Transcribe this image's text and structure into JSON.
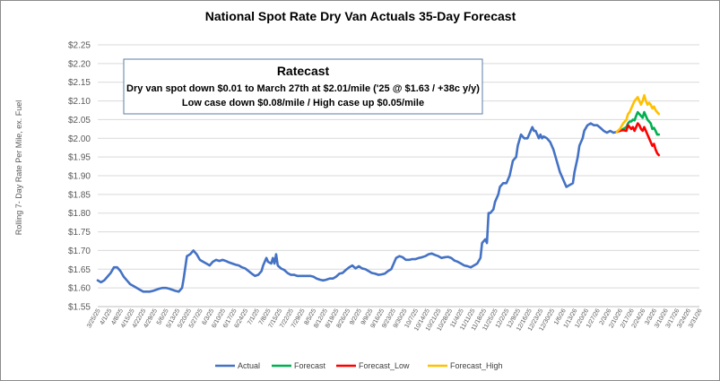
{
  "chart_data": {
    "type": "line",
    "title": "National Spot Rate Dry Van Actuals 35-Day Forecast",
    "ylabel": "Rolling 7- Day Rate Per Mile, ex. Fuel",
    "xlabel": "",
    "ylim": [
      1.55,
      2.25
    ],
    "yticks": [
      "$1.55",
      "$1.60",
      "$1.65",
      "$1.70",
      "$1.75",
      "$1.80",
      "$1.85",
      "$1.90",
      "$1.95",
      "$2.00",
      "$2.05",
      "$2.10",
      "$2.15",
      "$2.20",
      "$2.25"
    ],
    "xticks": [
      "3/25/25",
      "4/1/25",
      "4/8/25",
      "4/15/25",
      "4/22/25",
      "4/29/25",
      "5/6/25",
      "5/13/25",
      "5/20/25",
      "5/27/25",
      "6/3/25",
      "6/10/25",
      "6/17/25",
      "6/24/25",
      "7/1/25",
      "7/8/25",
      "7/15/25",
      "7/22/25",
      "7/29/25",
      "8/5/25",
      "8/12/25",
      "8/19/25",
      "8/26/25",
      "9/2/25",
      "9/9/25",
      "9/16/25",
      "9/23/25",
      "9/30/25",
      "10/7/25",
      "10/14/25",
      "10/21/25",
      "10/28/25",
      "11/4/25",
      "11/11/25",
      "11/18/25",
      "11/25/25",
      "12/2/25",
      "12/9/25",
      "12/16/25",
      "12/23/25",
      "12/30/25",
      "1/6/26",
      "1/13/26",
      "1/20/26",
      "1/27/26",
      "2/3/26",
      "2/10/26",
      "2/17/26",
      "2/24/26",
      "3/3/26",
      "3/10/26",
      "3/17/26",
      "3/24/26",
      "3/31/26"
    ],
    "annotation": {
      "title": "Ratecast",
      "lines": [
        "Dry van spot down $0.01 to March 27th at $2.01/mile ('25 @ $1.63 / +38c y/y)",
        "Low case down $0.08/mile / High case up $0.05/mile"
      ]
    },
    "legend_position": "bottom",
    "series": [
      {
        "name": "Actual",
        "color": "#4472c4",
        "points": [
          [
            0,
            1.62
          ],
          [
            2,
            1.615
          ],
          [
            4,
            1.62
          ],
          [
            6,
            1.63
          ],
          [
            8,
            1.64
          ],
          [
            10,
            1.655
          ],
          [
            12,
            1.655
          ],
          [
            14,
            1.645
          ],
          [
            16,
            1.63
          ],
          [
            18,
            1.62
          ],
          [
            20,
            1.61
          ],
          [
            22,
            1.605
          ],
          [
            24,
            1.6
          ],
          [
            26,
            1.595
          ],
          [
            28,
            1.59
          ],
          [
            30,
            1.59
          ],
          [
            32,
            1.59
          ],
          [
            34,
            1.592
          ],
          [
            36,
            1.595
          ],
          [
            38,
            1.598
          ],
          [
            40,
            1.6
          ],
          [
            42,
            1.6
          ],
          [
            44,
            1.598
          ],
          [
            46,
            1.595
          ],
          [
            48,
            1.592
          ],
          [
            50,
            1.59
          ],
          [
            52,
            1.6
          ],
          [
            53,
            1.625
          ],
          [
            55,
            1.685
          ],
          [
            57,
            1.69
          ],
          [
            59,
            1.7
          ],
          [
            61,
            1.69
          ],
          [
            63,
            1.675
          ],
          [
            65,
            1.67
          ],
          [
            67,
            1.665
          ],
          [
            69,
            1.66
          ],
          [
            71,
            1.67
          ],
          [
            73,
            1.675
          ],
          [
            75,
            1.672
          ],
          [
            77,
            1.675
          ],
          [
            79,
            1.672
          ],
          [
            81,
            1.668
          ],
          [
            83,
            1.665
          ],
          [
            85,
            1.662
          ],
          [
            87,
            1.66
          ],
          [
            89,
            1.655
          ],
          [
            91,
            1.652
          ],
          [
            93,
            1.645
          ],
          [
            95,
            1.638
          ],
          [
            97,
            1.632
          ],
          [
            99,
            1.635
          ],
          [
            101,
            1.645
          ],
          [
            102,
            1.66
          ],
          [
            104,
            1.68
          ],
          [
            105,
            1.67
          ],
          [
            107,
            1.665
          ],
          [
            108,
            1.68
          ],
          [
            109,
            1.665
          ],
          [
            110,
            1.69
          ],
          [
            111,
            1.66
          ],
          [
            113,
            1.652
          ],
          [
            115,
            1.648
          ],
          [
            117,
            1.64
          ],
          [
            119,
            1.635
          ],
          [
            121,
            1.635
          ],
          [
            123,
            1.632
          ],
          [
            125,
            1.632
          ],
          [
            127,
            1.632
          ],
          [
            129,
            1.632
          ],
          [
            131,
            1.632
          ],
          [
            133,
            1.63
          ],
          [
            135,
            1.625
          ],
          [
            137,
            1.622
          ],
          [
            139,
            1.62
          ],
          [
            141,
            1.622
          ],
          [
            143,
            1.625
          ],
          [
            145,
            1.625
          ],
          [
            147,
            1.63
          ],
          [
            149,
            1.638
          ],
          [
            151,
            1.64
          ],
          [
            153,
            1.648
          ],
          [
            155,
            1.655
          ],
          [
            157,
            1.66
          ],
          [
            159,
            1.652
          ],
          [
            161,
            1.658
          ],
          [
            163,
            1.652
          ],
          [
            165,
            1.65
          ],
          [
            167,
            1.645
          ],
          [
            169,
            1.64
          ],
          [
            171,
            1.638
          ],
          [
            173,
            1.635
          ],
          [
            175,
            1.636
          ],
          [
            177,
            1.638
          ],
          [
            179,
            1.645
          ],
          [
            181,
            1.65
          ],
          [
            182,
            1.66
          ],
          [
            184,
            1.68
          ],
          [
            186,
            1.685
          ],
          [
            188,
            1.682
          ],
          [
            190,
            1.675
          ],
          [
            192,
            1.675
          ],
          [
            194,
            1.677
          ],
          [
            196,
            1.677
          ],
          [
            198,
            1.68
          ],
          [
            200,
            1.682
          ],
          [
            202,
            1.685
          ],
          [
            204,
            1.69
          ],
          [
            206,
            1.692
          ],
          [
            208,
            1.688
          ],
          [
            210,
            1.685
          ],
          [
            212,
            1.68
          ],
          [
            214,
            1.682
          ],
          [
            216,
            1.683
          ],
          [
            218,
            1.68
          ],
          [
            220,
            1.673
          ],
          [
            222,
            1.67
          ],
          [
            224,
            1.665
          ],
          [
            226,
            1.66
          ],
          [
            228,
            1.658
          ],
          [
            230,
            1.655
          ],
          [
            232,
            1.66
          ],
          [
            234,
            1.665
          ],
          [
            236,
            1.68
          ],
          [
            237,
            1.72
          ],
          [
            239,
            1.73
          ],
          [
            240,
            1.72
          ],
          [
            241,
            1.8
          ],
          [
            242,
            1.8
          ],
          [
            244,
            1.81
          ],
          [
            245,
            1.83
          ],
          [
            247,
            1.85
          ],
          [
            248,
            1.87
          ],
          [
            250,
            1.88
          ],
          [
            252,
            1.88
          ],
          [
            254,
            1.9
          ],
          [
            256,
            1.94
          ],
          [
            258,
            1.95
          ],
          [
            259,
            1.98
          ],
          [
            261,
            2.01
          ],
          [
            263,
            2.0
          ],
          [
            265,
            2.0
          ],
          [
            267,
            2.02
          ],
          [
            268,
            2.03
          ],
          [
            269,
            2.02
          ],
          [
            270,
            2.02
          ],
          [
            272,
            2.0
          ],
          [
            273,
            2.01
          ],
          [
            274,
            2.0
          ],
          [
            275,
            2.005
          ],
          [
            277,
            2.0
          ],
          [
            279,
            1.99
          ],
          [
            281,
            1.97
          ],
          [
            283,
            1.94
          ],
          [
            285,
            1.91
          ],
          [
            286,
            1.9
          ],
          [
            288,
            1.88
          ],
          [
            289,
            1.87
          ],
          [
            291,
            1.875
          ],
          [
            293,
            1.88
          ],
          [
            294,
            1.91
          ],
          [
            296,
            1.95
          ],
          [
            297,
            1.98
          ],
          [
            299,
            2.0
          ],
          [
            300,
            2.02
          ],
          [
            302,
            2.035
          ],
          [
            304,
            2.04
          ],
          [
            306,
            2.035
          ],
          [
            308,
            2.035
          ],
          [
            310,
            2.028
          ],
          [
            312,
            2.02
          ],
          [
            314,
            2.015
          ],
          [
            316,
            2.02
          ],
          [
            318,
            2.015
          ],
          [
            320,
            2.017
          ]
        ]
      },
      {
        "name": "Forecast",
        "color": "#00b050",
        "points": [
          [
            320,
            2.017
          ],
          [
            322,
            2.02
          ],
          [
            324,
            2.025
          ],
          [
            326,
            2.03
          ],
          [
            327,
            2.04
          ],
          [
            328,
            2.045
          ],
          [
            329,
            2.045
          ],
          [
            330,
            2.05
          ],
          [
            331,
            2.048
          ],
          [
            332,
            2.06
          ],
          [
            333,
            2.07
          ],
          [
            334,
            2.065
          ],
          [
            335,
            2.06
          ],
          [
            336,
            2.055
          ],
          [
            337,
            2.07
          ],
          [
            338,
            2.06
          ],
          [
            339,
            2.05
          ],
          [
            340,
            2.045
          ],
          [
            341,
            2.04
          ],
          [
            342,
            2.025
          ],
          [
            343,
            2.028
          ],
          [
            344,
            2.02
          ],
          [
            345,
            2.01
          ],
          [
            346,
            2.01
          ]
        ]
      },
      {
        "name": "Forecast_Low",
        "color": "#ff0000",
        "points": [
          [
            320,
            2.017
          ],
          [
            322,
            2.02
          ],
          [
            324,
            2.022
          ],
          [
            326,
            2.02
          ],
          [
            327,
            2.035
          ],
          [
            328,
            2.03
          ],
          [
            329,
            2.025
          ],
          [
            330,
            2.03
          ],
          [
            331,
            2.02
          ],
          [
            332,
            2.03
          ],
          [
            333,
            2.04
          ],
          [
            334,
            2.035
          ],
          [
            335,
            2.025
          ],
          [
            336,
            2.02
          ],
          [
            337,
            2.03
          ],
          [
            338,
            2.02
          ],
          [
            339,
            2.01
          ],
          [
            340,
            2.0
          ],
          [
            341,
            1.99
          ],
          [
            342,
            1.98
          ],
          [
            343,
            1.985
          ],
          [
            344,
            1.97
          ],
          [
            345,
            1.96
          ],
          [
            346,
            1.955
          ]
        ]
      },
      {
        "name": "Forecast_High",
        "color": "#ffc000",
        "points": [
          [
            320,
            2.017
          ],
          [
            322,
            2.025
          ],
          [
            324,
            2.04
          ],
          [
            326,
            2.05
          ],
          [
            327,
            2.065
          ],
          [
            328,
            2.07
          ],
          [
            329,
            2.08
          ],
          [
            330,
            2.09
          ],
          [
            331,
            2.1
          ],
          [
            332,
            2.105
          ],
          [
            333,
            2.11
          ],
          [
            334,
            2.1
          ],
          [
            335,
            2.09
          ],
          [
            336,
            2.1
          ],
          [
            337,
            2.115
          ],
          [
            338,
            2.1
          ],
          [
            339,
            2.09
          ],
          [
            340,
            2.095
          ],
          [
            341,
            2.09
          ],
          [
            342,
            2.08
          ],
          [
            343,
            2.085
          ],
          [
            344,
            2.075
          ],
          [
            345,
            2.07
          ],
          [
            346,
            2.065
          ]
        ]
      }
    ]
  }
}
